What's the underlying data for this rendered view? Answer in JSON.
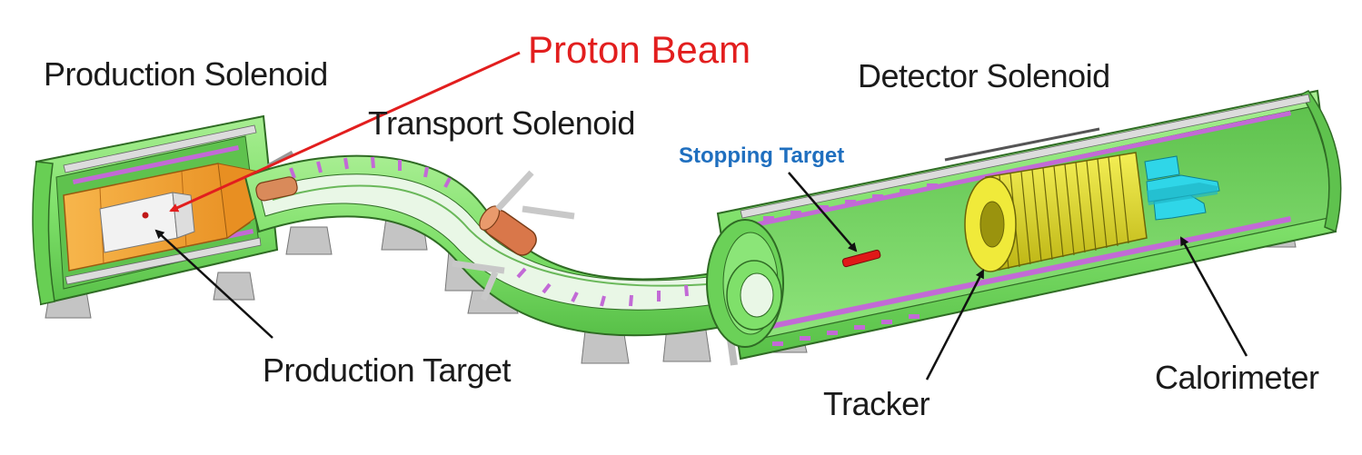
{
  "labels": {
    "production_solenoid": "Production Solenoid",
    "proton_beam": "Proton Beam",
    "transport_solenoid": "Transport Solenoid",
    "detector_solenoid": "Detector Solenoid",
    "stopping_target": "Stopping Target",
    "production_target": "Production Target",
    "tracker": "Tracker",
    "calorimeter": "Calorimeter"
  },
  "colors": {
    "solenoid_green": "#7fe06a",
    "solenoid_edge": "#2f6b24",
    "orange": "#f5a033",
    "yellow": "#e6e020",
    "cyan": "#2fd6e8",
    "magenta": "#c26ad6",
    "support_gray": "#b9b9b9",
    "beam_red": "#e21e1e",
    "arrow_black": "#111111",
    "stopping_blue": "#1f6fbf"
  }
}
